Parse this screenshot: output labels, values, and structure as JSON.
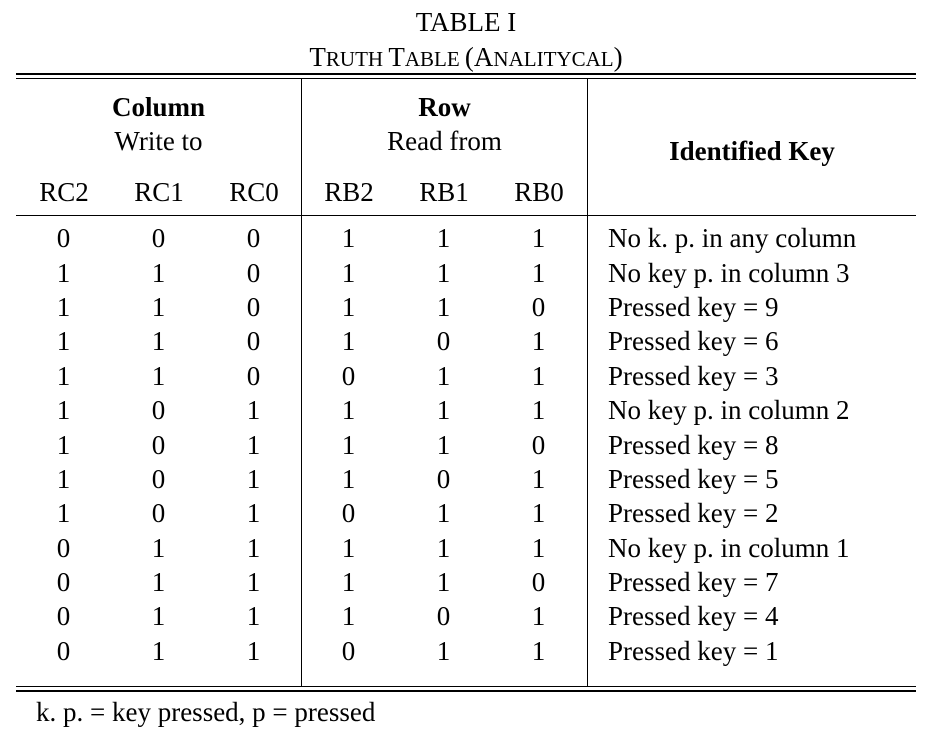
{
  "table": {
    "label": "TABLE I",
    "caption_parts": [
      {
        "big": "T",
        "small": "RUTH "
      },
      {
        "big": "T",
        "small": "ABLE "
      },
      {
        "big": "(A",
        "small": "NALITYCAL"
      },
      {
        "big": ")",
        "small": ""
      }
    ],
    "caption": "Truth Table (Analitycal)"
  },
  "header": {
    "column_group": {
      "title": "Column",
      "subtitle": "Write to"
    },
    "row_group": {
      "title": "Row",
      "subtitle": "Read from"
    },
    "key_header": "Identified Key",
    "columns": [
      "RC2",
      "RC1",
      "RC0",
      "RB2",
      "RB1",
      "RB0"
    ]
  },
  "rows": [
    {
      "cells": [
        "0",
        "0",
        "0",
        "1",
        "1",
        "1"
      ],
      "key": "No k. p. in any column"
    },
    {
      "cells": [
        "1",
        "1",
        "0",
        "1",
        "1",
        "1"
      ],
      "key": "No key p. in column 3"
    },
    {
      "cells": [
        "1",
        "1",
        "0",
        "1",
        "1",
        "0"
      ],
      "key": "Pressed key = 9"
    },
    {
      "cells": [
        "1",
        "1",
        "0",
        "1",
        "0",
        "1"
      ],
      "key": "Pressed key = 6"
    },
    {
      "cells": [
        "1",
        "1",
        "0",
        "0",
        "1",
        "1"
      ],
      "key": "Pressed key = 3"
    },
    {
      "cells": [
        "1",
        "0",
        "1",
        "1",
        "1",
        "1"
      ],
      "key": "No key p. in column 2"
    },
    {
      "cells": [
        "1",
        "0",
        "1",
        "1",
        "1",
        "0"
      ],
      "key": "Pressed key = 8"
    },
    {
      "cells": [
        "1",
        "0",
        "1",
        "1",
        "0",
        "1"
      ],
      "key": "Pressed key = 5"
    },
    {
      "cells": [
        "1",
        "0",
        "1",
        "0",
        "1",
        "1"
      ],
      "key": "Pressed key = 2"
    },
    {
      "cells": [
        "0",
        "1",
        "1",
        "1",
        "1",
        "1"
      ],
      "key": "No key p. in column 1"
    },
    {
      "cells": [
        "0",
        "1",
        "1",
        "1",
        "1",
        "0"
      ],
      "key": "Pressed key = 7"
    },
    {
      "cells": [
        "0",
        "1",
        "1",
        "1",
        "0",
        "1"
      ],
      "key": "Pressed key = 4"
    },
    {
      "cells": [
        "0",
        "1",
        "1",
        "0",
        "1",
        "1"
      ],
      "key": "Pressed key = 1"
    }
  ],
  "footnote": "k. p. = key pressed, p = pressed"
}
